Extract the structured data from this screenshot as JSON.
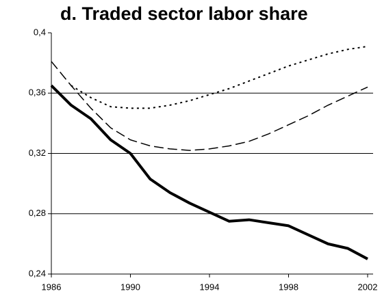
{
  "chart_data": {
    "type": "line",
    "title": "d. Traded sector labor share",
    "x": [
      1986,
      1987,
      1988,
      1989,
      1990,
      1991,
      1992,
      1993,
      1994,
      1995,
      1996,
      1997,
      1998,
      1999,
      2000,
      2001,
      2002
    ],
    "series": [
      {
        "color": "#000000",
        "dash": "solid",
        "width": 4,
        "values": [
          0.365,
          0.352,
          0.343,
          0.329,
          0.32,
          0.303,
          0.294,
          0.287,
          0.281,
          0.275,
          0.276,
          0.274,
          0.272,
          0.266,
          0.26,
          0.257,
          0.25
        ]
      },
      {
        "color": "#000000",
        "dash": "dashed",
        "width": 1.5,
        "values": [
          0.381,
          0.365,
          0.35,
          0.337,
          0.329,
          0.325,
          0.323,
          0.322,
          0.323,
          0.325,
          0.328,
          0.333,
          0.339,
          0.345,
          0.352,
          0.358,
          0.364
        ]
      },
      {
        "color": "#000000",
        "dash": "dotted",
        "width": 2,
        "values": [
          null,
          0.365,
          0.357,
          0.351,
          0.35,
          0.35,
          0.352,
          0.355,
          0.359,
          0.363,
          0.368,
          0.373,
          0.378,
          0.382,
          0.386,
          0.389,
          0.391
        ]
      }
    ],
    "xlim": [
      1986,
      2002
    ],
    "xticks": [
      1986,
      1990,
      1994,
      1998,
      2002
    ],
    "ylim": [
      0.24,
      0.4
    ],
    "yticks": [
      {
        "value": 0.24,
        "label": "0,24"
      },
      {
        "value": 0.28,
        "label": "0,28"
      },
      {
        "value": 0.32,
        "label": "0,32"
      },
      {
        "value": 0.36,
        "label": "0,36"
      },
      {
        "value": 0.4,
        "label": "0,4"
      }
    ],
    "grid": true
  }
}
